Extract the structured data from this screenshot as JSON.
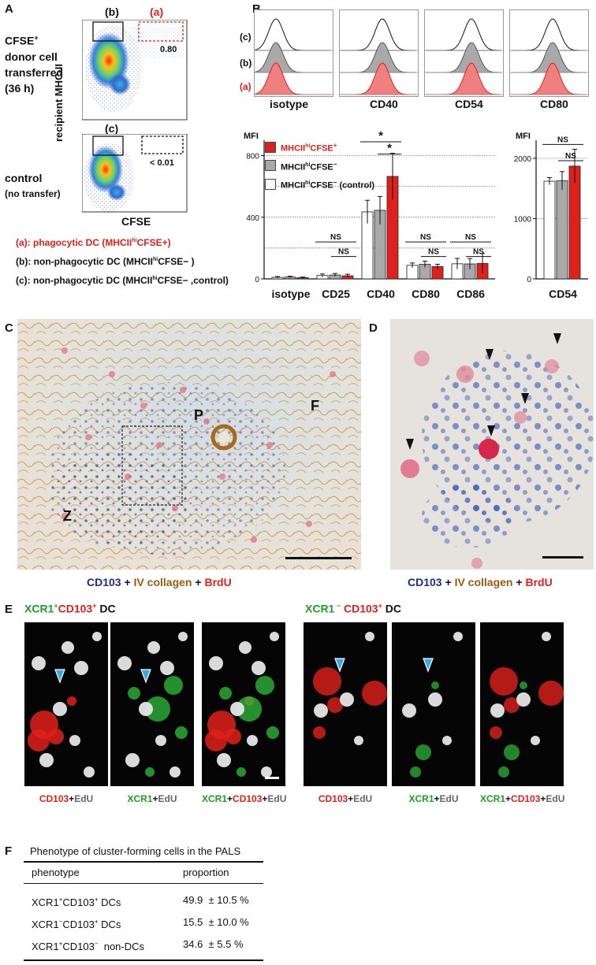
{
  "panels": {
    "A": "A",
    "B": "B",
    "C": "C",
    "D": "D",
    "E": "E",
    "F": "F"
  },
  "panelA": {
    "label_b": "(b)",
    "label_a": "(a)",
    "label_c": "(c)",
    "gate_value_top": "0.80",
    "gate_value_bottom": "< 0.01",
    "row1_line1": "CFSE",
    "row1_sup": "+",
    "row1_line2": "donor cell",
    "row1_line3": "transferred",
    "row1_line4": "(36 h)",
    "row2_line1": "control",
    "row2_line2": "(no transfer)",
    "ylabel": "recipient MHC-II",
    "xlabel": "CFSE",
    "legend": [
      {
        "pre": "(a): phagocytic DC (MHCII",
        "sup": "hi",
        "post": "CFSE+)",
        "color": "#e0201b"
      },
      {
        "pre": "(b): non-phagocytic DC (MHCII",
        "sup": "hi",
        "post": "CFSE− )",
        "color": "#111111"
      },
      {
        "pre": "(c): non-phagocytic DC (MHCII",
        "sup": "hi",
        "post": "CFSE− ,control)",
        "color": "#111111"
      }
    ]
  },
  "panelB_hist": {
    "row_labels": [
      "(c)",
      "(b)",
      "(a)"
    ],
    "markers": [
      "isotype",
      "CD40",
      "CD54",
      "CD80"
    ]
  },
  "chart_data": [
    {
      "type": "bar",
      "ylabel": "MFI",
      "categories": [
        "isotype",
        "CD25",
        "CD40",
        "CD80",
        "CD86"
      ],
      "ylim": [
        0,
        900
      ],
      "yticks": [
        0,
        400,
        800
      ],
      "gridlines": [
        200,
        400,
        600,
        800
      ],
      "series": [
        {
          "name": "MHCIIhiCFSE− (control)",
          "color": "#ffffff",
          "values": [
            10,
            22,
            435,
            88,
            98
          ],
          "errors": [
            5,
            10,
            75,
            15,
            35
          ]
        },
        {
          "name": "MHCIIhiCFSE−",
          "color": "#a9a9a9",
          "values": [
            12,
            25,
            445,
            95,
            97
          ],
          "errors": [
            5,
            10,
            90,
            20,
            35
          ]
        },
        {
          "name": "MHCIIhiCFSE+",
          "color": "#e0201b",
          "values": [
            8,
            20,
            665,
            80,
            100
          ],
          "errors": [
            4,
            10,
            150,
            15,
            65
          ]
        }
      ],
      "annotations": {
        "ns_label": "NS",
        "star_label": "*"
      }
    },
    {
      "type": "bar",
      "ylabel": "MFI",
      "categories": [
        "CD54"
      ],
      "ylim": [
        0,
        2300
      ],
      "yticks": [
        0,
        1000,
        2000
      ],
      "gridlines": [
        1000,
        2000
      ],
      "series": [
        {
          "name": "MHCIIhiCFSE− (control)",
          "color": "#ffffff",
          "values": [
            1620
          ],
          "errors": [
            60
          ]
        },
        {
          "name": "MHCIIhiCFSE−",
          "color": "#a9a9a9",
          "values": [
            1630
          ],
          "errors": [
            150
          ]
        },
        {
          "name": "MHCIIhiCFSE+",
          "color": "#e0201b",
          "values": [
            1870
          ],
          "errors": [
            280
          ]
        }
      ]
    }
  ],
  "legendB": [
    {
      "pre": "MHCII",
      "sup": "hi",
      "post": "CFSE",
      "supr": "+",
      "color": "#e0201b",
      "text_color": "#e0201b"
    },
    {
      "pre": "MHCII",
      "sup": "hi",
      "post": "CFSE",
      "supr": "−",
      "color": "#a9a9a9",
      "text_color": "#111111"
    },
    {
      "pre": "MHCII",
      "sup": "hi",
      "post": "CFSE",
      "supr": "−",
      "tail": " (control)",
      "color": "#ffffff",
      "text_color": "#111111"
    }
  ],
  "panelC": {
    "label_P": "P",
    "label_F": "F",
    "label_Z": "Z"
  },
  "stain_caption": {
    "cd103": "CD103",
    "plus1": " + ",
    "collagen": "IV collagen",
    "plus2": " + ",
    "brdu": "BrdU"
  },
  "panelE": {
    "title_left_a": "XCR1",
    "title_left_a_sup": "+",
    "title_left_b": "CD103",
    "title_left_b_sup": "+",
    "title_left_c": " DC",
    "title_right_a": "XCR1",
    "title_right_a_sup": " −",
    "title_right_b": " CD103",
    "title_right_b_sup": "+",
    "title_right_c": " DC",
    "cap_cd103": "CD103",
    "cap_xcr1": "XCR1",
    "cap_edu": "EdU",
    "cap_plus": "+"
  },
  "panelF": {
    "title": "Phenotype of cluster-forming cells in the PALS",
    "col1": "phenotype",
    "col2": "proportion",
    "rows": [
      {
        "p1": "XCR1",
        "s1": "+",
        "p2": "CD103",
        "s2": "+",
        "p3": " DCs",
        "value": "49.9  ± 10.5 %"
      },
      {
        "p1": "XCR1",
        "s1": "−",
        "p2": "CD103",
        "s2": "+",
        "p3": " DCs",
        "value": "15.5  ± 10.0 %"
      },
      {
        "p1": "XCR1",
        "s1": "+",
        "p2": "CD103",
        "s2": "−",
        "p3": "  non-DCs",
        "value": "34.6  ± 5.5 %"
      }
    ]
  },
  "colors": {
    "red": "#e0201b",
    "gray": "#a9a9a9",
    "navy": "#1d2a8a",
    "brown": "#9a5a14",
    "green": "#1e9e2a",
    "cyan": "#38a9e0"
  }
}
